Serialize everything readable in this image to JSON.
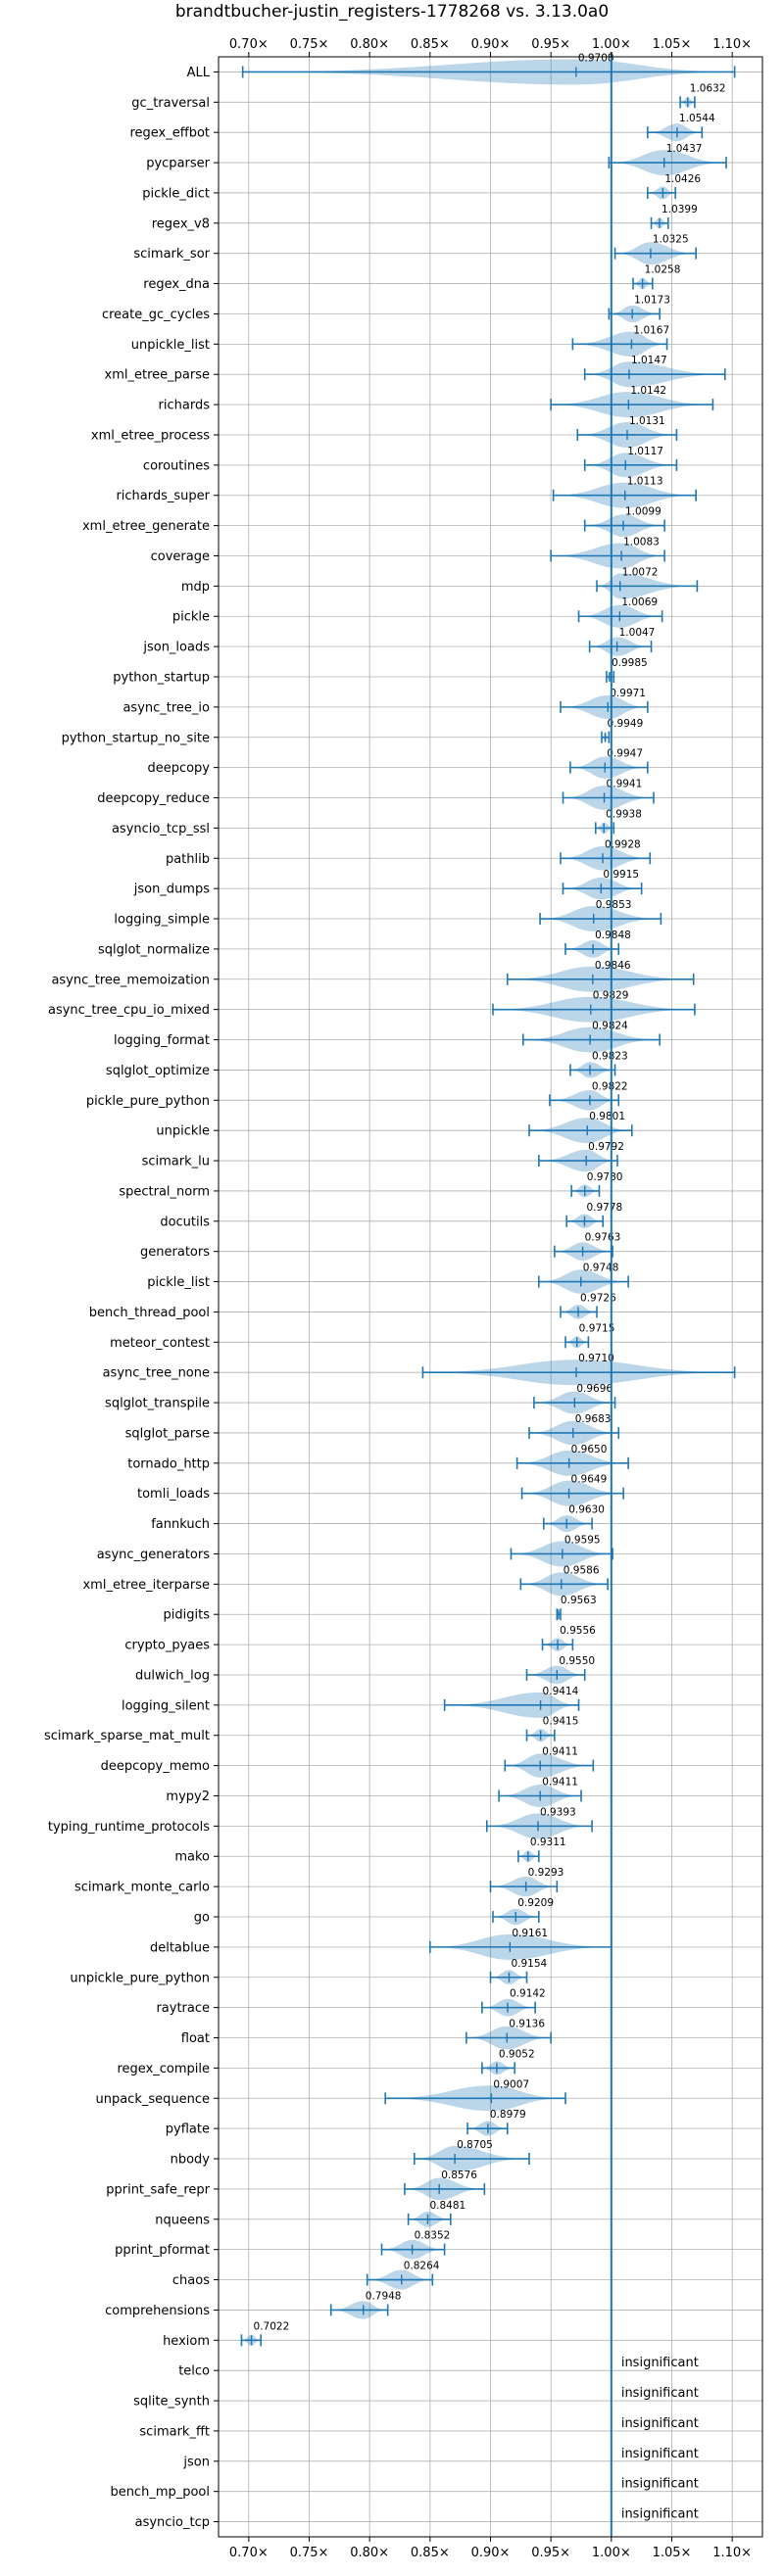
{
  "chart_data": {
    "type": "violin",
    "title": "brandtbucher-justin_registers-1778268 vs. 3.13.0a0",
    "xlim": [
      0.675,
      1.125
    ],
    "x_ticks": [
      0.7,
      0.75,
      0.8,
      0.85,
      0.9,
      0.95,
      1.0,
      1.05,
      1.1
    ],
    "x_tick_labels": [
      "0.70×",
      "0.75×",
      "0.80×",
      "0.85×",
      "0.90×",
      "0.95×",
      "1.00×",
      "1.05×",
      "1.10×"
    ],
    "baseline": 1.0,
    "grid": true,
    "colors": {
      "violin": "#1f77b4",
      "grid": "#b0b0b0",
      "baseline": "#1f77b4"
    },
    "benchmarks": [
      {
        "name": "ALL",
        "value": 0.9708,
        "label": "0.9708",
        "min": 0.695,
        "max": 1.102
      },
      {
        "name": "gc_traversal",
        "value": 1.0632,
        "label": "1.0632",
        "min": 1.057,
        "max": 1.069
      },
      {
        "name": "regex_effbot",
        "value": 1.0544,
        "label": "1.0544",
        "min": 1.03,
        "max": 1.075
      },
      {
        "name": "pycparser",
        "value": 1.0437,
        "label": "1.0437",
        "min": 0.998,
        "max": 1.095
      },
      {
        "name": "pickle_dict",
        "value": 1.0426,
        "label": "1.0426",
        "min": 1.03,
        "max": 1.053
      },
      {
        "name": "regex_v8",
        "value": 1.0399,
        "label": "1.0399",
        "min": 1.033,
        "max": 1.047
      },
      {
        "name": "scimark_sor",
        "value": 1.0325,
        "label": "1.0325",
        "min": 1.003,
        "max": 1.07
      },
      {
        "name": "regex_dna",
        "value": 1.0258,
        "label": "1.0258",
        "min": 1.018,
        "max": 1.034
      },
      {
        "name": "create_gc_cycles",
        "value": 1.0173,
        "label": "1.0173",
        "min": 0.998,
        "max": 1.04
      },
      {
        "name": "unpickle_list",
        "value": 1.0167,
        "label": "1.0167",
        "min": 0.968,
        "max": 1.046
      },
      {
        "name": "xml_etree_parse",
        "value": 1.0147,
        "label": "1.0147",
        "min": 0.978,
        "max": 1.094
      },
      {
        "name": "richards",
        "value": 1.0142,
        "label": "1.0142",
        "min": 0.95,
        "max": 1.084
      },
      {
        "name": "xml_etree_process",
        "value": 1.0131,
        "label": "1.0131",
        "min": 0.972,
        "max": 1.054
      },
      {
        "name": "coroutines",
        "value": 1.0117,
        "label": "1.0117",
        "min": 0.978,
        "max": 1.054
      },
      {
        "name": "richards_super",
        "value": 1.0113,
        "label": "1.0113",
        "min": 0.952,
        "max": 1.07
      },
      {
        "name": "xml_etree_generate",
        "value": 1.0099,
        "label": "1.0099",
        "min": 0.978,
        "max": 1.044
      },
      {
        "name": "coverage",
        "value": 1.0083,
        "label": "1.0083",
        "min": 0.95,
        "max": 1.044
      },
      {
        "name": "mdp",
        "value": 1.0072,
        "label": "1.0072",
        "min": 0.988,
        "max": 1.071
      },
      {
        "name": "pickle",
        "value": 1.0069,
        "label": "1.0069",
        "min": 0.973,
        "max": 1.042
      },
      {
        "name": "json_loads",
        "value": 1.0047,
        "label": "1.0047",
        "min": 0.982,
        "max": 1.033
      },
      {
        "name": "python_startup",
        "value": 0.9985,
        "label": "0.9985",
        "min": 0.996,
        "max": 1.002
      },
      {
        "name": "async_tree_io",
        "value": 0.9971,
        "label": "0.9971",
        "min": 0.958,
        "max": 1.03
      },
      {
        "name": "python_startup_no_site",
        "value": 0.9949,
        "label": "0.9949",
        "min": 0.992,
        "max": 0.998
      },
      {
        "name": "deepcopy",
        "value": 0.9947,
        "label": "0.9947",
        "min": 0.966,
        "max": 1.03
      },
      {
        "name": "deepcopy_reduce",
        "value": 0.9941,
        "label": "0.9941",
        "min": 0.96,
        "max": 1.035
      },
      {
        "name": "asyncio_tcp_ssl",
        "value": 0.9938,
        "label": "0.9938",
        "min": 0.987,
        "max": 1.002
      },
      {
        "name": "pathlib",
        "value": 0.9928,
        "label": "0.9928",
        "min": 0.958,
        "max": 1.032
      },
      {
        "name": "json_dumps",
        "value": 0.9915,
        "label": "0.9915",
        "min": 0.96,
        "max": 1.025
      },
      {
        "name": "logging_simple",
        "value": 0.9853,
        "label": "0.9853",
        "min": 0.941,
        "max": 1.041
      },
      {
        "name": "sqlglot_normalize",
        "value": 0.9848,
        "label": "0.9848",
        "min": 0.962,
        "max": 1.006
      },
      {
        "name": "async_tree_memoization",
        "value": 0.9846,
        "label": "0.9846",
        "min": 0.914,
        "max": 1.068
      },
      {
        "name": "async_tree_cpu_io_mixed",
        "value": 0.9829,
        "label": "0.9829",
        "min": 0.902,
        "max": 1.069
      },
      {
        "name": "logging_format",
        "value": 0.9824,
        "label": "0.9824",
        "min": 0.927,
        "max": 1.04
      },
      {
        "name": "sqlglot_optimize",
        "value": 0.9823,
        "label": "0.9823",
        "min": 0.966,
        "max": 1.003
      },
      {
        "name": "pickle_pure_python",
        "value": 0.9822,
        "label": "0.9822",
        "min": 0.949,
        "max": 1.006
      },
      {
        "name": "unpickle",
        "value": 0.9801,
        "label": "0.9801",
        "min": 0.932,
        "max": 1.017
      },
      {
        "name": "scimark_lu",
        "value": 0.9792,
        "label": "0.9792",
        "min": 0.94,
        "max": 1.005
      },
      {
        "name": "spectral_norm",
        "value": 0.978,
        "label": "0.9780",
        "min": 0.967,
        "max": 0.99
      },
      {
        "name": "docutils",
        "value": 0.9778,
        "label": "0.9778",
        "min": 0.963,
        "max": 0.993
      },
      {
        "name": "generators",
        "value": 0.9763,
        "label": "0.9763",
        "min": 0.953,
        "max": 1.001
      },
      {
        "name": "pickle_list",
        "value": 0.9748,
        "label": "0.9748",
        "min": 0.94,
        "max": 1.014
      },
      {
        "name": "bench_thread_pool",
        "value": 0.9726,
        "label": "0.9726",
        "min": 0.958,
        "max": 0.988
      },
      {
        "name": "meteor_contest",
        "value": 0.9715,
        "label": "0.9715",
        "min": 0.962,
        "max": 0.981
      },
      {
        "name": "async_tree_none",
        "value": 0.971,
        "label": "0.9710",
        "min": 0.844,
        "max": 1.102
      },
      {
        "name": "sqlglot_transpile",
        "value": 0.9696,
        "label": "0.9696",
        "min": 0.936,
        "max": 1.003
      },
      {
        "name": "sqlglot_parse",
        "value": 0.9683,
        "label": "0.9683",
        "min": 0.932,
        "max": 1.006
      },
      {
        "name": "tornado_http",
        "value": 0.965,
        "label": "0.9650",
        "min": 0.922,
        "max": 1.014
      },
      {
        "name": "tomli_loads",
        "value": 0.9649,
        "label": "0.9649",
        "min": 0.926,
        "max": 1.01
      },
      {
        "name": "fannkuch",
        "value": 0.963,
        "label": "0.9630",
        "min": 0.944,
        "max": 0.984
      },
      {
        "name": "async_generators",
        "value": 0.9595,
        "label": "0.9595",
        "min": 0.917,
        "max": 1.001
      },
      {
        "name": "xml_etree_iterparse",
        "value": 0.9586,
        "label": "0.9586",
        "min": 0.925,
        "max": 0.997
      },
      {
        "name": "pidigits",
        "value": 0.9563,
        "label": "0.9563",
        "min": 0.955,
        "max": 0.958
      },
      {
        "name": "crypto_pyaes",
        "value": 0.9556,
        "label": "0.9556",
        "min": 0.943,
        "max": 0.968
      },
      {
        "name": "dulwich_log",
        "value": 0.955,
        "label": "0.9550",
        "min": 0.93,
        "max": 0.978
      },
      {
        "name": "logging_silent",
        "value": 0.9414,
        "label": "0.9414",
        "min": 0.862,
        "max": 0.973
      },
      {
        "name": "scimark_sparse_mat_mult",
        "value": 0.9415,
        "label": "0.9415",
        "min": 0.93,
        "max": 0.953
      },
      {
        "name": "deepcopy_memo",
        "value": 0.9411,
        "label": "0.9411",
        "min": 0.912,
        "max": 0.985
      },
      {
        "name": "mypy2",
        "value": 0.9411,
        "label": "0.9411",
        "min": 0.907,
        "max": 0.975
      },
      {
        "name": "typing_runtime_protocols",
        "value": 0.9393,
        "label": "0.9393",
        "min": 0.897,
        "max": 0.984
      },
      {
        "name": "mako",
        "value": 0.9311,
        "label": "0.9311",
        "min": 0.923,
        "max": 0.94
      },
      {
        "name": "scimark_monte_carlo",
        "value": 0.9293,
        "label": "0.9293",
        "min": 0.9,
        "max": 0.955
      },
      {
        "name": "go",
        "value": 0.9209,
        "label": "0.9209",
        "min": 0.902,
        "max": 0.94
      },
      {
        "name": "deltablue",
        "value": 0.9161,
        "label": "0.9161",
        "min": 0.85,
        "max": 1.0
      },
      {
        "name": "unpickle_pure_python",
        "value": 0.9154,
        "label": "0.9154",
        "min": 0.9,
        "max": 0.93
      },
      {
        "name": "raytrace",
        "value": 0.9142,
        "label": "0.9142",
        "min": 0.893,
        "max": 0.937
      },
      {
        "name": "float",
        "value": 0.9136,
        "label": "0.9136",
        "min": 0.88,
        "max": 0.95
      },
      {
        "name": "regex_compile",
        "value": 0.9052,
        "label": "0.9052",
        "min": 0.893,
        "max": 0.92
      },
      {
        "name": "unpack_sequence",
        "value": 0.9007,
        "label": "0.9007",
        "min": 0.813,
        "max": 0.962
      },
      {
        "name": "pyflate",
        "value": 0.8979,
        "label": "0.8979",
        "min": 0.881,
        "max": 0.914
      },
      {
        "name": "nbody",
        "value": 0.8705,
        "label": "0.8705",
        "min": 0.837,
        "max": 0.932
      },
      {
        "name": "pprint_safe_repr",
        "value": 0.8576,
        "label": "0.8576",
        "min": 0.829,
        "max": 0.895
      },
      {
        "name": "nqueens",
        "value": 0.8481,
        "label": "0.8481",
        "min": 0.832,
        "max": 0.867
      },
      {
        "name": "pprint_pformat",
        "value": 0.8352,
        "label": "0.8352",
        "min": 0.81,
        "max": 0.862
      },
      {
        "name": "chaos",
        "value": 0.8264,
        "label": "0.8264",
        "min": 0.798,
        "max": 0.852
      },
      {
        "name": "comprehensions",
        "value": 0.7948,
        "label": "0.7948",
        "min": 0.768,
        "max": 0.815
      },
      {
        "name": "hexiom",
        "value": 0.7022,
        "label": "0.7022",
        "min": 0.694,
        "max": 0.71
      },
      {
        "name": "telco",
        "value": null,
        "label": "insignificant"
      },
      {
        "name": "sqlite_synth",
        "value": null,
        "label": "insignificant"
      },
      {
        "name": "scimark_fft",
        "value": null,
        "label": "insignificant"
      },
      {
        "name": "json",
        "value": null,
        "label": "insignificant"
      },
      {
        "name": "bench_mp_pool",
        "value": null,
        "label": "insignificant"
      },
      {
        "name": "asyncio_tcp",
        "value": null,
        "label": "insignificant"
      }
    ]
  }
}
